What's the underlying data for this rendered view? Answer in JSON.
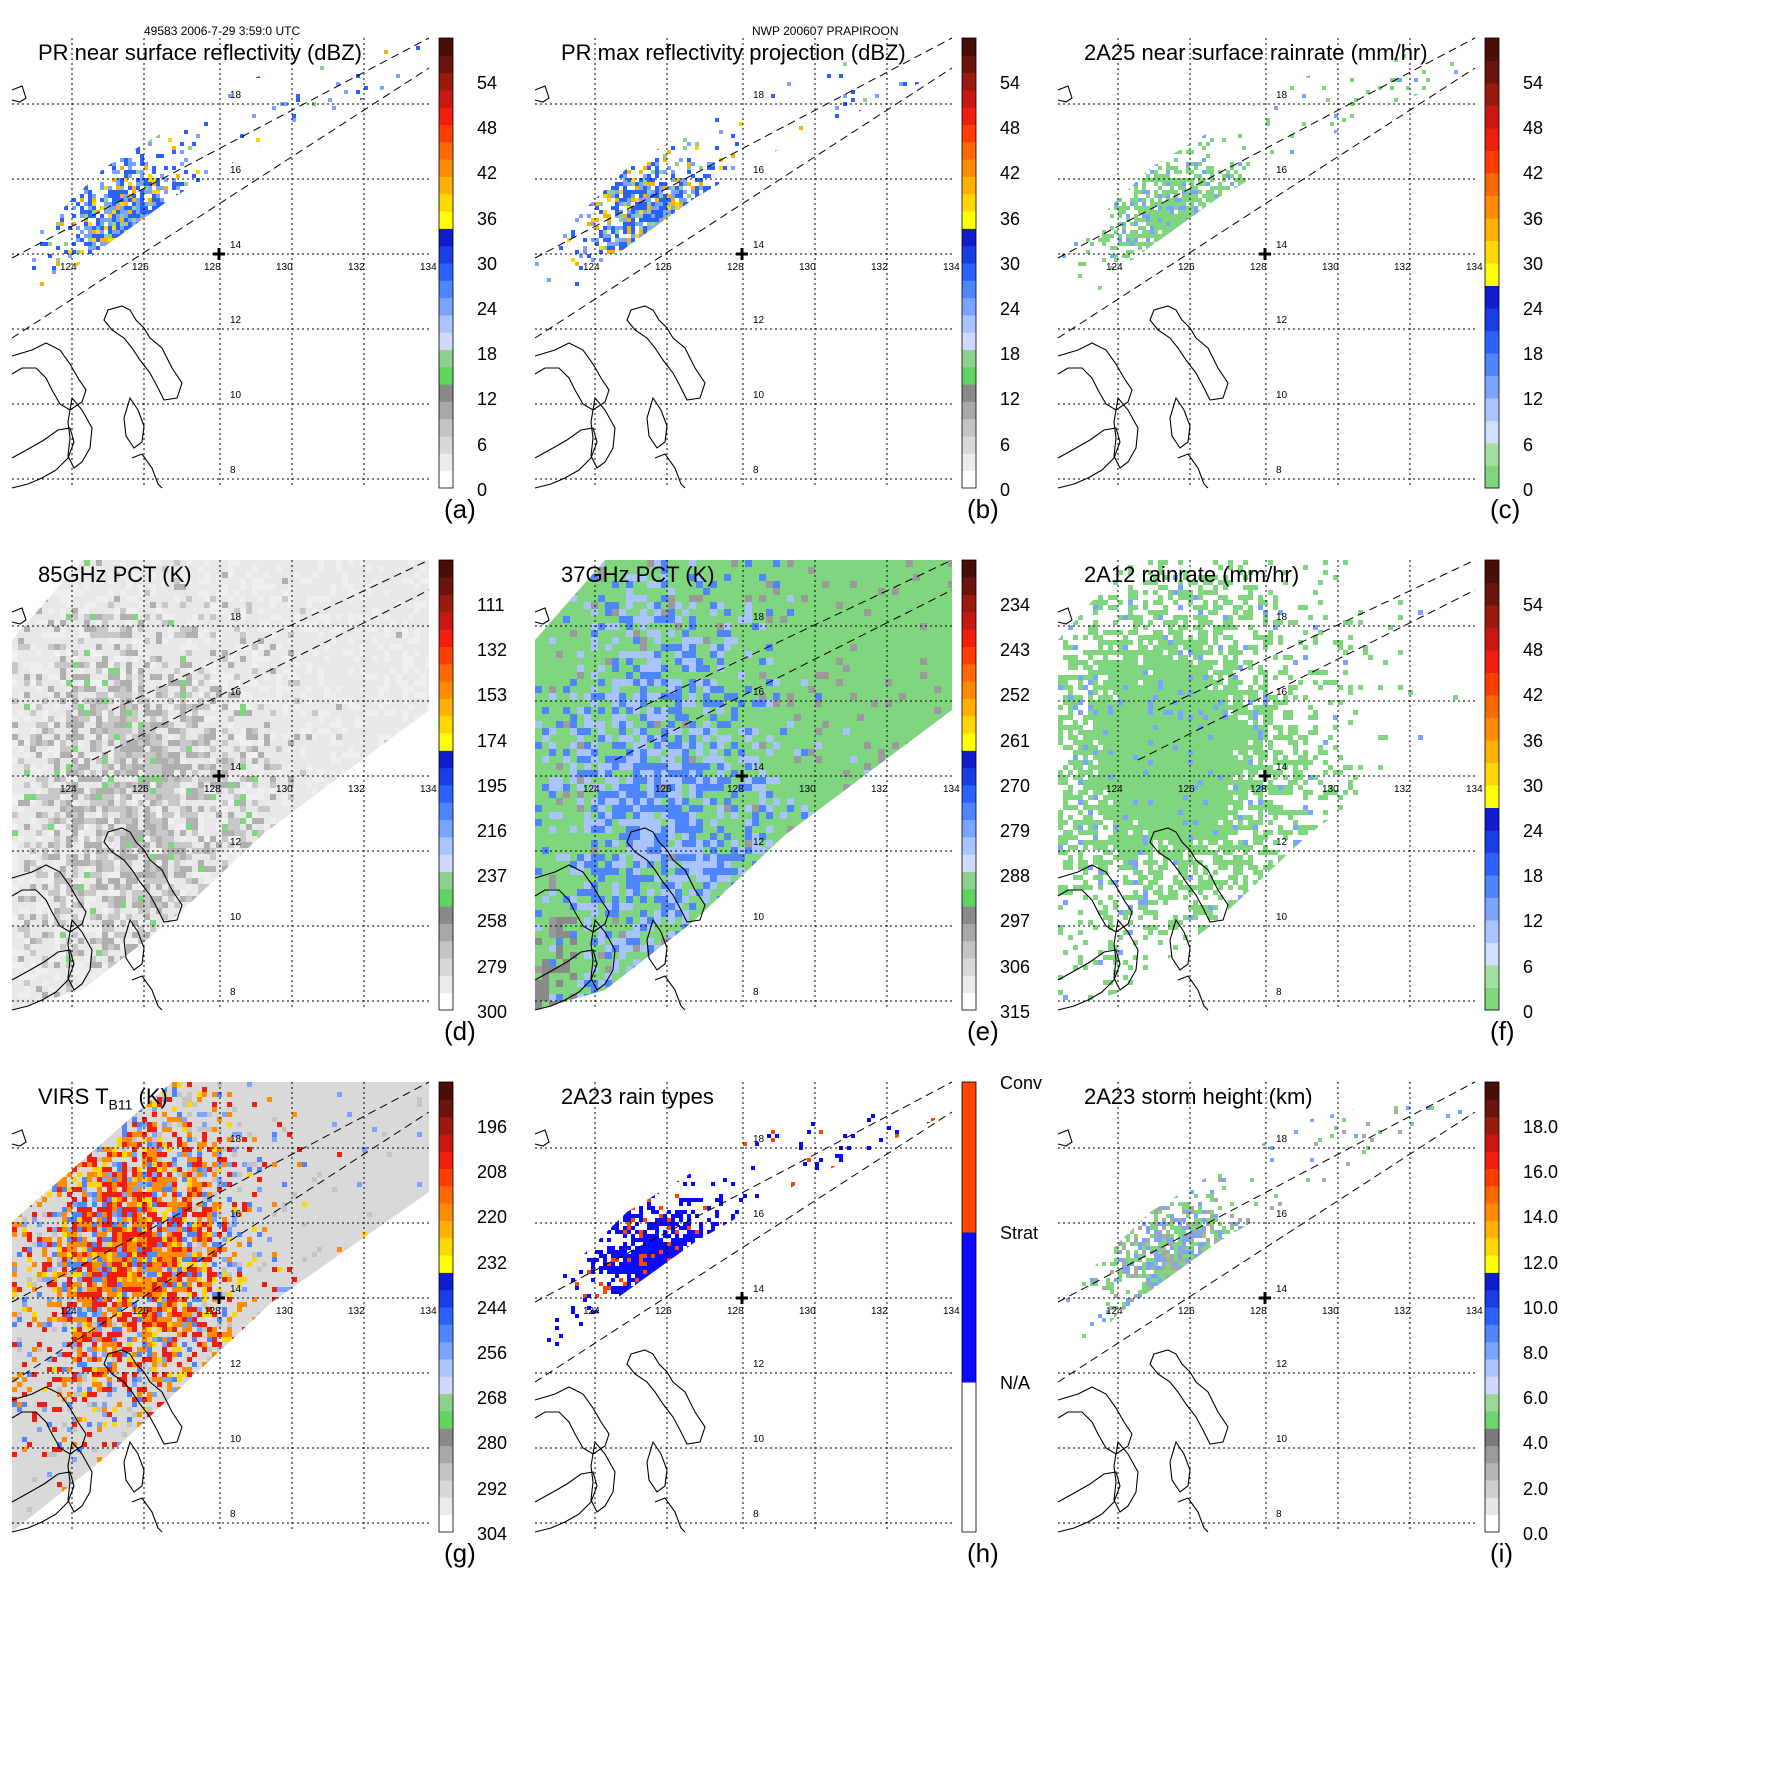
{
  "header": {
    "left": "49583 2006-7-29 3:59:0 UTC",
    "center": "NWP 200607 PRAPIROON"
  },
  "axes": {
    "lon_labels": [
      "124",
      "126",
      "128",
      "130",
      "132",
      "134"
    ],
    "lat_labels": [
      "18",
      "16",
      "14",
      "12",
      "10",
      "8"
    ]
  },
  "colors": {
    "green": "#77d677",
    "lightblue": "#b9cfff",
    "blue": "#3a6dff",
    "darkblue": "#1a1ae6",
    "yellow": "#ffe600",
    "orange": "#ff8c00",
    "red": "#d7261e",
    "gray": "#9a9a9a",
    "lightgray": "#e6e6e6",
    "brown": "#5a1a10"
  },
  "palettes": {
    "reflectivity": [
      "#ffffff",
      "#ececec",
      "#d8d8d8",
      "#c4c4c4",
      "#a8a8a8",
      "#8a8a8a",
      "#5fd35f",
      "#8ed18e",
      "#cfd9ff",
      "#a9c4ff",
      "#7aa4ff",
      "#4f86ff",
      "#2a62ff",
      "#1a3de6",
      "#0f1ec8",
      "#ffff00",
      "#ffd700",
      "#ffb000",
      "#ff8c00",
      "#ff6a00",
      "#ff3d00",
      "#ef1e0e",
      "#c81812",
      "#9a1a10",
      "#6a140c",
      "#4a0e08"
    ],
    "rainrate": [
      "#7fd67f",
      "#a2e0a2",
      "#cfe0ff",
      "#a9c4ff",
      "#7aa4ff",
      "#4f86ff",
      "#2a62ff",
      "#1a3de6",
      "#0f1ec8",
      "#ffff00",
      "#ffd700",
      "#ffb000",
      "#ff8c00",
      "#ff6a00",
      "#ff3d00",
      "#ef1e0e",
      "#c81812",
      "#9a1a10",
      "#6a140c",
      "#4a0e08"
    ],
    "pct": [
      "#ffffff",
      "#ececec",
      "#d8d8d8",
      "#c4c4c4",
      "#a8a8a8",
      "#8a8a8a",
      "#5fd35f",
      "#8ed18e",
      "#cfd9ff",
      "#a9c4ff",
      "#7aa4ff",
      "#4f86ff",
      "#2a62ff",
      "#1a3de6",
      "#0f1ec8",
      "#ffff00",
      "#ffd700",
      "#ffb000",
      "#ff8c00",
      "#ff6a00",
      "#ff3d00",
      "#ef1e0e",
      "#c81812",
      "#9a1a10",
      "#6a140c",
      "#4a0e08"
    ],
    "raintype": [
      "#ffffff",
      "#ffffff",
      "#ffffff",
      "#ffffff",
      "#0a0aff",
      "#0a0aff",
      "#0a0aff",
      "#0a0aff",
      "#ff4500",
      "#ff4500",
      "#ff4500",
      "#ff4500"
    ],
    "height": [
      "#ffffff",
      "#e6e6e6",
      "#cfcfcf",
      "#b6b6b6",
      "#9a9a9a",
      "#7a7a7a",
      "#6fd36f",
      "#9bd99b",
      "#cfd9ff",
      "#a9c4ff",
      "#7aa4ff",
      "#4f86ff",
      "#2a62ff",
      "#1a3de6",
      "#0f1ec8",
      "#ffff00",
      "#ffd700",
      "#ffb000",
      "#ff8c00",
      "#ff6a00",
      "#ff3d00",
      "#ef1e0e",
      "#c81812",
      "#9a1a10",
      "#6a140c",
      "#4a0e08"
    ]
  },
  "panels": [
    {
      "title": "PR near surface reflectivity (dBZ)",
      "label": "(a)",
      "palette": "reflectivity",
      "type": "pr",
      "colorbar": {
        "labels": [
          "54",
          "48",
          "42",
          "36",
          "30",
          "24",
          "18",
          "12",
          "6",
          "0"
        ]
      }
    },
    {
      "title": "PR max reflectivity projection (dBZ)",
      "label": "(b)",
      "palette": "reflectivity",
      "type": "pr",
      "colorbar": {
        "labels": [
          "54",
          "48",
          "42",
          "36",
          "30",
          "24",
          "18",
          "12",
          "6",
          "0"
        ]
      }
    },
    {
      "title": "2A25 near surface rainrate (mm/hr)",
      "label": "(c)",
      "palette": "rainrate",
      "type": "pr",
      "colorbar": {
        "labels": [
          "54",
          "48",
          "42",
          "36",
          "30",
          "24",
          "18",
          "12",
          "6",
          "0"
        ]
      }
    },
    {
      "title": "85GHz PCT (K)",
      "label": "(d)",
      "palette": "pct",
      "type": "tmi",
      "colorbar": {
        "labels": [
          "111",
          "132",
          "153",
          "174",
          "195",
          "216",
          "237",
          "258",
          "279",
          "300"
        ]
      }
    },
    {
      "title": "37GHz PCT (K)",
      "label": "(e)",
      "palette": "pct",
      "type": "tmi",
      "colorbar": {
        "labels": [
          "234",
          "243",
          "252",
          "261",
          "270",
          "279",
          "288",
          "297",
          "306",
          "315"
        ]
      }
    },
    {
      "title": "2A12 rainrate (mm/hr)",
      "label": "(f)",
      "palette": "rainrate",
      "type": "tmirain",
      "colorbar": {
        "labels": [
          "54",
          "48",
          "42",
          "36",
          "30",
          "24",
          "18",
          "12",
          "6",
          "0"
        ]
      }
    },
    {
      "title": "VIRS T",
      "title_sub": "B11",
      "title_after": " (K)",
      "label": "(g)",
      "palette": "pct",
      "type": "virs",
      "colorbar": {
        "labels": [
          "196",
          "208",
          "220",
          "232",
          "244",
          "256",
          "268",
          "280",
          "292",
          "304"
        ]
      }
    },
    {
      "title": "2A23 rain types",
      "label": "(h)",
      "palette": "raintype",
      "type": "prtype",
      "colorbar": {
        "labels": [
          "Conv",
          "Strat",
          "N/A"
        ]
      }
    },
    {
      "title": "2A23 storm height (km)",
      "label": "(i)",
      "palette": "height",
      "type": "prheight",
      "colorbar": {
        "labels": [
          "18.0",
          "16.0",
          "14.0",
          "12.0",
          "10.0",
          "8.0",
          "6.0",
          "4.0",
          "2.0",
          "0.0"
        ]
      }
    }
  ]
}
